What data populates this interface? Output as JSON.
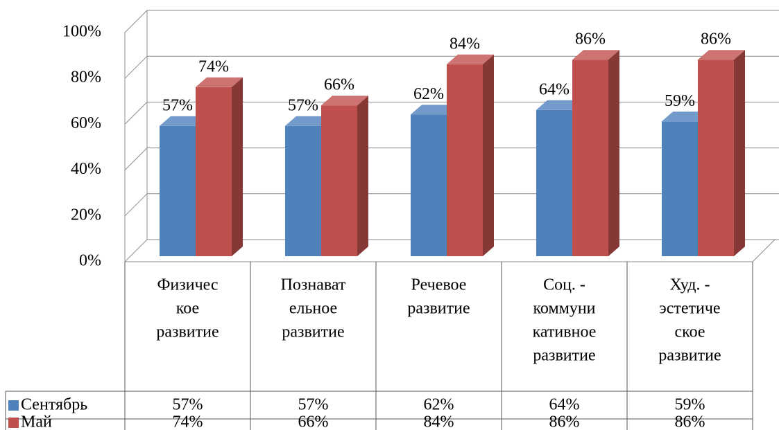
{
  "chart_data": {
    "type": "bar3d",
    "categories": [
      [
        "Физичес",
        "кое",
        "развитие"
      ],
      [
        "Познават",
        "ельное",
        "развитие"
      ],
      [
        "Речевое",
        "развитие"
      ],
      [
        "Соц. -",
        "коммуни",
        "кативное",
        "развитие"
      ],
      [
        "Худ. -",
        "эстетиче",
        "ское",
        "развитие"
      ]
    ],
    "series": [
      {
        "name": "Сентябрь",
        "color": "#4f81bd",
        "values": [
          57,
          57,
          62,
          64,
          59
        ],
        "value_labels": [
          "57%",
          "57%",
          "62%",
          "64%",
          "59%"
        ]
      },
      {
        "name": "Май",
        "color": "#c0504d",
        "values": [
          74,
          66,
          84,
          86,
          86
        ],
        "value_labels": [
          "74%",
          "66%",
          "84%",
          "86%",
          "86%"
        ]
      }
    ],
    "ylim": [
      0,
      100
    ],
    "yticks": [
      {
        "value": 0,
        "label": "0%"
      },
      {
        "value": 20,
        "label": "20%"
      },
      {
        "value": 40,
        "label": "40%"
      },
      {
        "value": 60,
        "label": "60%"
      },
      {
        "value": 80,
        "label": "80%"
      },
      {
        "value": 100,
        "label": "100%"
      }
    ],
    "grid": true,
    "data_table": true
  }
}
